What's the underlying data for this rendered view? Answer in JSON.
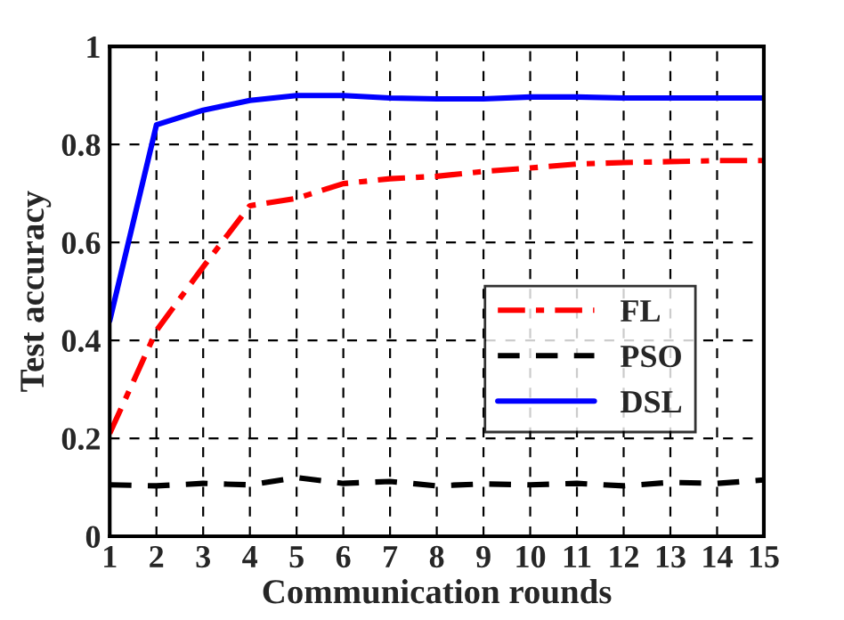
{
  "chart_data": {
    "type": "line",
    "xlabel": "Communication rounds",
    "ylabel": "Test accuracy",
    "x": [
      1,
      2,
      3,
      4,
      5,
      6,
      7,
      8,
      9,
      10,
      11,
      12,
      13,
      14,
      15
    ],
    "series": [
      {
        "name": "FL",
        "color": "#ff0000",
        "line_style": "dashdot",
        "values": [
          0.21,
          0.42,
          0.55,
          0.675,
          0.69,
          0.72,
          0.73,
          0.735,
          0.745,
          0.752,
          0.76,
          0.763,
          0.765,
          0.767,
          0.767
        ]
      },
      {
        "name": "PSO",
        "color": "#000000",
        "line_style": "dashed",
        "values": [
          0.105,
          0.103,
          0.108,
          0.105,
          0.12,
          0.108,
          0.112,
          0.103,
          0.107,
          0.105,
          0.108,
          0.103,
          0.11,
          0.108,
          0.115
        ]
      },
      {
        "name": "DSL",
        "color": "#0000ff",
        "line_style": "solid",
        "values": [
          0.44,
          0.84,
          0.87,
          0.89,
          0.9,
          0.9,
          0.895,
          0.893,
          0.893,
          0.897,
          0.897,
          0.895,
          0.895,
          0.895,
          0.895
        ]
      }
    ],
    "xlim": [
      1,
      15
    ],
    "xticks": [
      1,
      2,
      3,
      4,
      5,
      6,
      7,
      8,
      9,
      10,
      11,
      12,
      13,
      14,
      15
    ],
    "ylim": [
      0,
      1
    ],
    "yticks": [
      0,
      0.2,
      0.4,
      0.6,
      0.8,
      1
    ],
    "grid": true,
    "legend": "bottom right"
  }
}
